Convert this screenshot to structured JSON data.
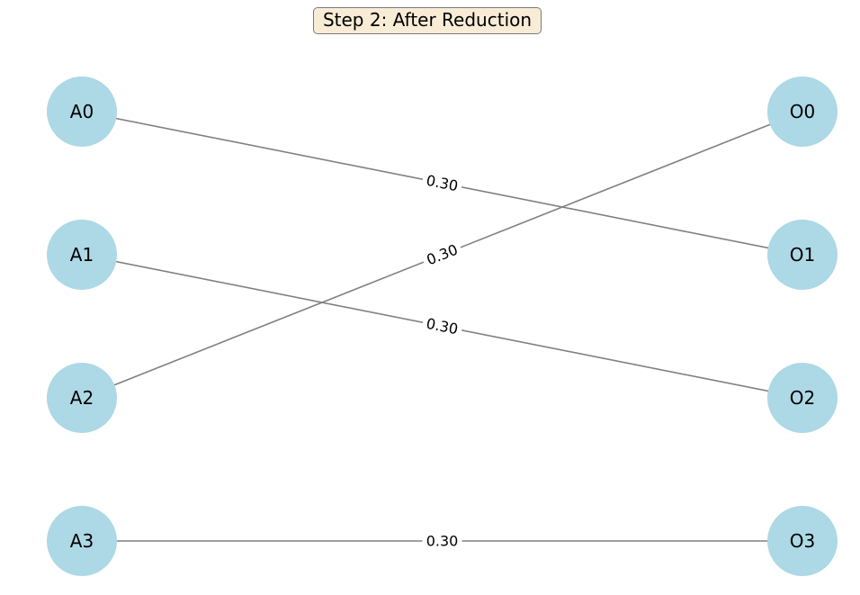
{
  "title": "Step 2: After Reduction",
  "colors": {
    "node_fill": "#add8e6",
    "edge": "#808080",
    "title_bg": "#f8ecd6"
  },
  "left_nodes": [
    "A0",
    "A1",
    "A2",
    "A3"
  ],
  "right_nodes": [
    "O0",
    "O1",
    "O2",
    "O3"
  ],
  "edges": [
    {
      "from": "A0",
      "to": "O1",
      "weight": "0.30"
    },
    {
      "from": "A2",
      "to": "O0",
      "weight": "0.30"
    },
    {
      "from": "A1",
      "to": "O2",
      "weight": "0.30"
    },
    {
      "from": "A3",
      "to": "O3",
      "weight": "0.30"
    }
  ]
}
